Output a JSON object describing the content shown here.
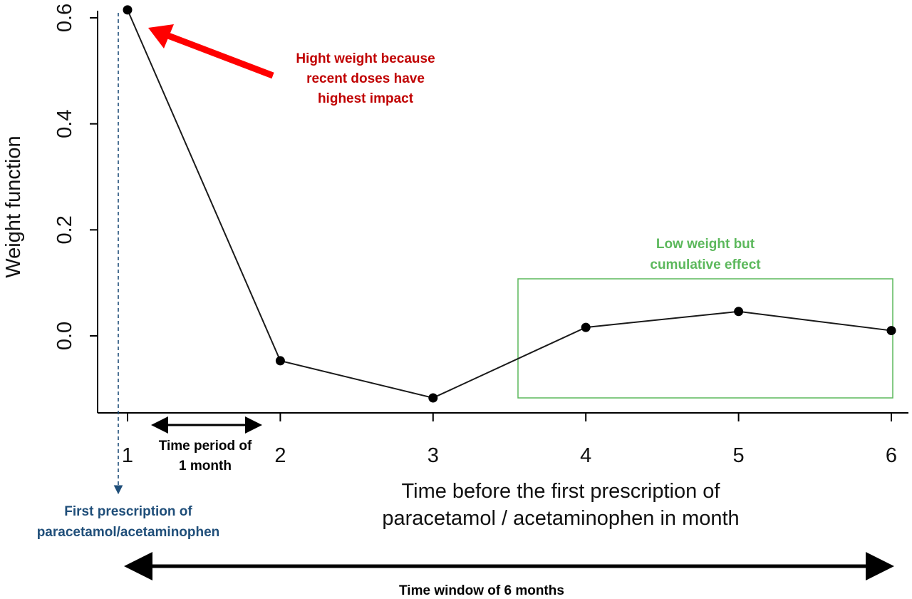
{
  "chart_data": {
    "type": "line",
    "x": [
      1,
      2,
      3,
      4,
      5,
      6
    ],
    "series": [
      {
        "values": [
          0.615,
          -0.047,
          -0.117,
          0.016,
          0.046,
          0.01
        ]
      }
    ],
    "xlabel": "Time before the first prescription of paracetamol / acetaminophen in month",
    "xlabel_lines": [
      "Time before the first prescription of",
      "paracetamol / acetaminophen in month"
    ],
    "ylabel": "Weight function",
    "xlim": [
      0.95,
      6.1
    ],
    "ylim": [
      -0.145,
      0.63
    ],
    "x_ticks": [
      "1",
      "2",
      "3",
      "4",
      "5",
      "6"
    ],
    "y_ticks": [
      "0.0",
      "0.2",
      "0.4",
      "0.6"
    ],
    "y_tick_values": [
      0.0,
      0.2,
      0.4,
      0.6
    ],
    "grid": false
  },
  "annotations": {
    "high_weight_lines": [
      "Hight weight because",
      "recent doses have",
      "highest impact"
    ],
    "low_weight_lines": [
      "Low weight but",
      "cumulative effect"
    ],
    "time_period_lines": [
      "Time period of",
      "1 month"
    ],
    "first_prescription_lines": [
      "First prescription of",
      "paracetamol/acetaminophen"
    ],
    "time_window": "Time window of 6 months"
  },
  "colors": {
    "red_annotation": "#c00000",
    "red_arrow": "#ff0000",
    "green_annotation": "#5cb85c",
    "blue_annotation": "#1f4e79",
    "line": "#1a1a1a"
  }
}
